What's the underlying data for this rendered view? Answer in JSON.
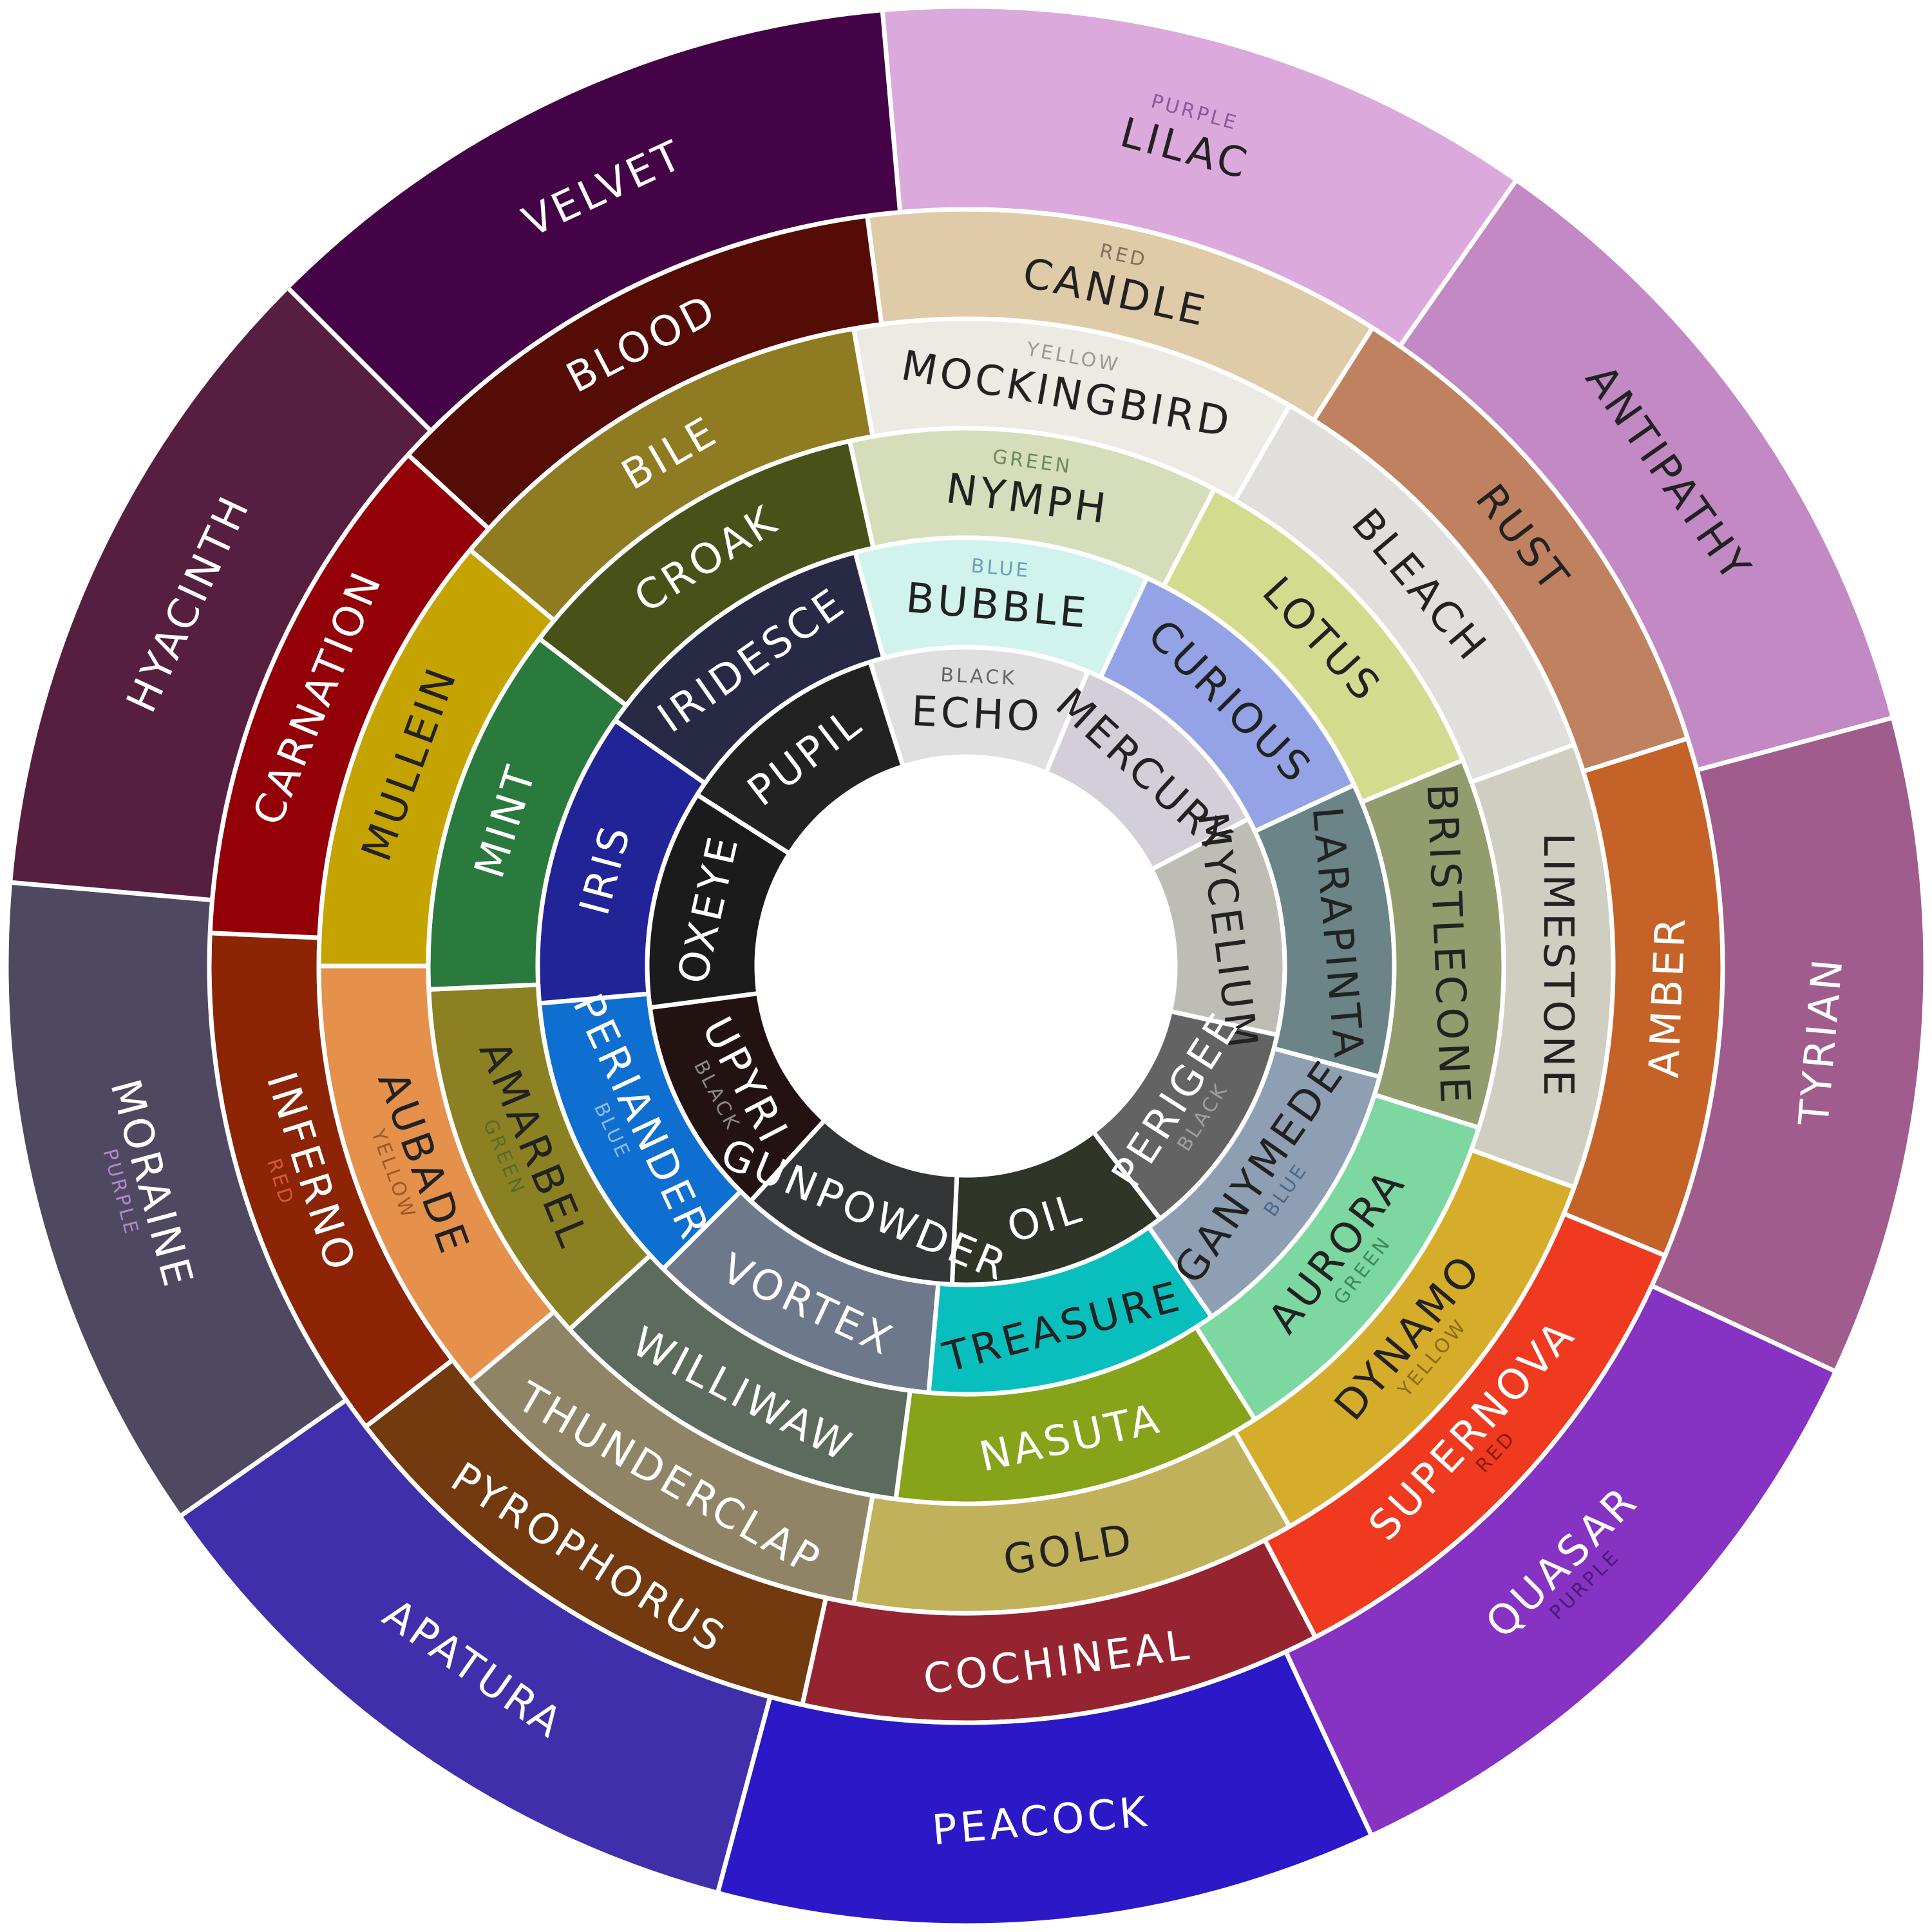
{
  "wheel": {
    "rings": [
      {
        "name": "inner",
        "segments": [
          {
            "label": "ECHO",
            "color": "#dfdfdf",
            "text": "#222222",
            "category": "BLACK",
            "cat_color": "#666666"
          },
          {
            "label": "MERCURY",
            "color": "#d4ced9",
            "text": "#222222"
          },
          {
            "label": "MYCELIUM",
            "color": "#bdbdb6",
            "text": "#222222"
          },
          {
            "label": "PERIGEE",
            "color": "#636363",
            "text": "#ffffff",
            "category": "BLACK",
            "cat_color": "#a0a0a0"
          },
          {
            "label": "OIL",
            "color": "#2f3628",
            "text": "#ffffff"
          },
          {
            "label": "GUNPOWDER",
            "color": "#343536",
            "text": "#ffffff"
          },
          {
            "label": "UPYRI",
            "color": "#231212",
            "text": "#ffffff",
            "category": "BLACK",
            "cat_color": "#8a8a8a"
          },
          {
            "label": "OXEYE",
            "color": "#1b1b1b",
            "text": "#ffffff"
          },
          {
            "label": "PUPIL",
            "color": "#222222",
            "text": "#ffffff"
          }
        ]
      },
      {
        "name": "ring-2",
        "segments": [
          {
            "label": "BUBBLE",
            "color": "#d1f3ee",
            "text": "#222222",
            "category": "BLUE",
            "cat_color": "#6aa0b8"
          },
          {
            "label": "CURIOUS",
            "color": "#93a3e6",
            "text": "#222222"
          },
          {
            "label": "LARAPINTA",
            "color": "#6a8487",
            "text": "#222222"
          },
          {
            "label": "GANYMEDE",
            "color": "#8f9fb3",
            "text": "#222222",
            "category": "BLUE",
            "cat_color": "#4a6a8a"
          },
          {
            "label": "TREASURE",
            "color": "#09bfbe",
            "text": "#222222"
          },
          {
            "label": "VORTEX",
            "color": "#6d788a",
            "text": "#ffffff"
          },
          {
            "label": "PERIANDER",
            "color": "#0f6fd0",
            "text": "#ffffff",
            "category": "BLUE",
            "cat_color": "#8fb8ee"
          },
          {
            "label": "IRIS",
            "color": "#212497",
            "text": "#ffffff"
          },
          {
            "label": "IRIDESCE",
            "color": "#282a45",
            "text": "#ffffff"
          }
        ]
      },
      {
        "name": "ring-3",
        "segments": [
          {
            "label": "NYMPH",
            "color": "#d6ddbb",
            "text": "#222222",
            "category": "GREEN",
            "cat_color": "#6c8a5a"
          },
          {
            "label": "LOTUS",
            "color": "#d3dc8e",
            "text": "#222222"
          },
          {
            "label": "BRISTLECONE",
            "color": "#939c6d",
            "text": "#222222"
          },
          {
            "label": "AURORA",
            "color": "#7dd7a0",
            "text": "#222222",
            "category": "GREEN",
            "cat_color": "#3c8a5a"
          },
          {
            "label": "NASUTA",
            "color": "#87a31a",
            "text": "#ffffff"
          },
          {
            "label": "WILLIWAW",
            "color": "#5c6b5b",
            "text": "#ffffff"
          },
          {
            "label": "AMARBEL",
            "color": "#8b8122",
            "text": "#222222",
            "category": "GREEN",
            "cat_color": "#5a6a2a"
          },
          {
            "label": "MINT",
            "color": "#2b7a3d",
            "text": "#ffffff"
          },
          {
            "label": "CROAK",
            "color": "#475118",
            "text": "#ffffff"
          }
        ]
      },
      {
        "name": "ring-4",
        "segments": [
          {
            "label": "MOCKINGBIRD",
            "color": "#eceae2",
            "text": "#222222",
            "category": "YELLOW",
            "cat_color": "#999999"
          },
          {
            "label": "BLEACH",
            "color": "#e0dfdb",
            "text": "#222222"
          },
          {
            "label": "LIMESTONE",
            "color": "#d0cec0",
            "text": "#222222"
          },
          {
            "label": "DYNAMO",
            "color": "#d6ac2b",
            "text": "#222222",
            "category": "YELLOW",
            "cat_color": "#8a6a1a"
          },
          {
            "label": "GOLD",
            "color": "#c1b15a",
            "text": "#222222"
          },
          {
            "label": "THUNDERCLAP",
            "color": "#8f8566",
            "text": "#ffffff"
          },
          {
            "label": "AUBADE",
            "color": "#e5914c",
            "text": "#222222",
            "category": "YELLOW",
            "cat_color": "#9a5a2a"
          },
          {
            "label": "MULLEIN",
            "color": "#c5a300",
            "text": "#222222"
          },
          {
            "label": "BILE",
            "color": "#8f7b22",
            "text": "#ffffff"
          }
        ]
      },
      {
        "name": "ring-5",
        "segments": [
          {
            "label": "CANDLE",
            "color": "#dfcba8",
            "text": "#222222",
            "category": "RED",
            "cat_color": "#8a6a5a"
          },
          {
            "label": "RUST",
            "color": "#c08160",
            "text": "#222222"
          },
          {
            "label": "AMBER",
            "color": "#c56227",
            "text": "#ffffff"
          },
          {
            "label": "SUPERNOVA",
            "color": "#ef3a1f",
            "text": "#ffffff",
            "category": "RED",
            "cat_color": "#8a1a10"
          },
          {
            "label": "COCHINEAL",
            "color": "#962430",
            "text": "#ffffff"
          },
          {
            "label": "PYROPHORUS",
            "color": "#73390f",
            "text": "#ffffff"
          },
          {
            "label": "INFERNO",
            "color": "#8c2405",
            "text": "#ffffff",
            "category": "RED",
            "cat_color": "#d05a3a"
          },
          {
            "label": "CARNATION",
            "color": "#930008",
            "text": "#ffffff"
          },
          {
            "label": "BLOOD",
            "color": "#560c06",
            "text": "#ffffff"
          }
        ]
      },
      {
        "name": "outer",
        "segments": [
          {
            "label": "LILAC",
            "color": "#dca9dc",
            "text": "#222222",
            "category": "PURPLE",
            "cat_color": "#8a5a9a"
          },
          {
            "label": "ANTIPATHY",
            "color": "#c289c4",
            "text": "#222222"
          },
          {
            "label": "TYRIAN",
            "color": "#9f5c8d",
            "text": "#ffffff"
          },
          {
            "label": "QUASAR",
            "color": "#8632c3",
            "text": "#ffffff",
            "category": "PURPLE",
            "cat_color": "#4a1a7a"
          },
          {
            "label": "PEACOCK",
            "color": "#2b18c6",
            "text": "#ffffff"
          },
          {
            "label": "APATURA",
            "color": "#3f2fab",
            "text": "#ffffff"
          },
          {
            "label": "MORAINE",
            "color": "#4e4860",
            "text": "#ffffff",
            "category": "PURPLE",
            "cat_color": "#b088cc"
          },
          {
            "label": "HYACINTH",
            "color": "#561f3f",
            "text": "#ffffff"
          },
          {
            "label": "VELVET",
            "color": "#440247",
            "text": "#ffffff"
          }
        ]
      }
    ]
  }
}
